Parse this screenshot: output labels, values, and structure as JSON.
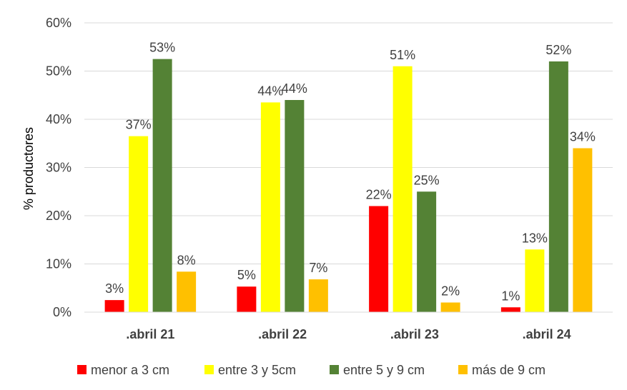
{
  "chart_data": {
    "type": "bar",
    "ylabel": "% productores",
    "ylim": [
      0,
      60
    ],
    "y_ticks": [
      0,
      10,
      20,
      30,
      40,
      50,
      60
    ],
    "y_tick_suffix": "%",
    "grid": true,
    "legend_position": "bottom",
    "categories": [
      ".abril 21",
      ".abril 22",
      ".abril 23",
      ".abril 24"
    ],
    "series": [
      {
        "name": "menor a 3 cm",
        "color": "#ff0000",
        "values": [
          2.5,
          5.3,
          22,
          1.0
        ],
        "labels": [
          "3%",
          "5%",
          "22%",
          "1%"
        ]
      },
      {
        "name": "entre 3 y 5cm",
        "color": "#ffff00",
        "values": [
          36.5,
          43.5,
          51,
          13
        ],
        "labels": [
          "37%",
          "44%",
          "51%",
          "13%"
        ]
      },
      {
        "name": "entre 5 y 9 cm",
        "color": "#548235",
        "values": [
          52.5,
          44,
          25,
          52
        ],
        "labels": [
          "53%",
          "44%",
          "25%",
          "52%"
        ]
      },
      {
        "name": "más de 9 cm",
        "color": "#ffc000",
        "values": [
          8.4,
          6.8,
          2.0,
          34
        ],
        "labels": [
          "8%",
          "7%",
          "2%",
          "34%"
        ]
      }
    ]
  }
}
